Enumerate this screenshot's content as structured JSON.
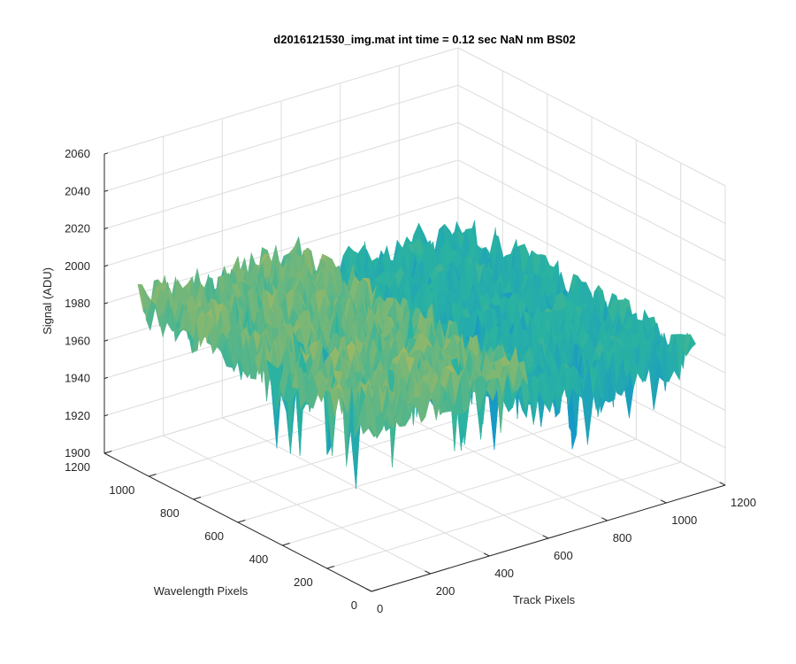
{
  "chart_data": {
    "type": "surface",
    "title": "d2016121530_img.mat int time = 0.12 sec  NaN nm BS02",
    "xlabel": "Track Pixels",
    "ylabel": "Wavelength Pixels",
    "zlabel": "Signal (ADU)",
    "xlim": [
      0,
      1200
    ],
    "ylim": [
      0,
      1200
    ],
    "zlim": [
      1900,
      2060
    ],
    "x_ticks": [
      0,
      200,
      400,
      600,
      800,
      1000,
      1200
    ],
    "y_ticks": [
      0,
      200,
      400,
      600,
      800,
      1000,
      1200
    ],
    "z_ticks": [
      1900,
      1920,
      1940,
      1960,
      1980,
      2000,
      2020,
      2040,
      2060
    ],
    "x_tick_labels": [
      "0",
      "200",
      "400",
      "600",
      "800",
      "1000",
      "1200"
    ],
    "y_tick_labels": [
      "0",
      "200",
      "400",
      "600",
      "800",
      "1000",
      "1200"
    ],
    "z_tick_labels": [
      "1900",
      "1920",
      "1940",
      "1960",
      "1980",
      "2000",
      "2020",
      "2040",
      "2060"
    ],
    "grid": true,
    "colormap": "parula",
    "surface": {
      "x_range": [
        0,
        1100
      ],
      "y_range": [
        0,
        1050
      ],
      "left_half_mean": 1990,
      "right_half_mean": 1975,
      "noise_amplitude": 25
    }
  },
  "colors": {
    "low": "#0f8fd6",
    "mid": "#2bb3a0",
    "high": "#d9bb44",
    "grid": "#dcdcdc",
    "axis": "#262626"
  }
}
